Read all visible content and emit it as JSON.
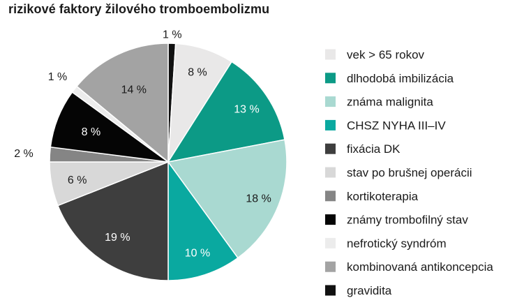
{
  "chart_data": {
    "type": "pie",
    "title": "rizikové faktory žilového tromboembolizmu",
    "slices": [
      {
        "label": "gravidita",
        "value": 1,
        "value_label": "1 %",
        "color": "#111111",
        "label_color": "#1a1a1a"
      },
      {
        "label": "vek > 65 rokov",
        "value": 8,
        "value_label": "8 %",
        "color": "#e9e8e8",
        "label_color": "#1a1a1a"
      },
      {
        "label": "dlhodobá imbilizácia",
        "value": 13,
        "value_label": "13 %",
        "color": "#0c9a86",
        "label_color": "#ffffff"
      },
      {
        "label": "známa malignita",
        "value": 18,
        "value_label": "18 %",
        "color": "#a9d9d1",
        "label_color": "#1a1a1a"
      },
      {
        "label": "CHSZ NYHA III–IV",
        "value": 10,
        "value_label": "10 %",
        "color": "#0aa9a0",
        "label_color": "#ffffff"
      },
      {
        "label": "fixácia DK",
        "value": 19,
        "value_label": "19 %",
        "color": "#3e3e3e",
        "label_color": "#ffffff"
      },
      {
        "label": "stav po brušnej operácii",
        "value": 6,
        "value_label": "6 %",
        "color": "#d8d8d8",
        "label_color": "#1a1a1a"
      },
      {
        "label": "kortikoterapia",
        "value": 2,
        "value_label": "2 %",
        "color": "#858585",
        "label_color": "#1a1a1a"
      },
      {
        "label": "známy trombofilný stav",
        "value": 8,
        "value_label": "8 %",
        "color": "#050505",
        "label_color": "#ffffff"
      },
      {
        "label": "nefrotický syndróm",
        "value": 1,
        "value_label": "1 %",
        "color": "#ececec",
        "label_color": "#1a1a1a"
      },
      {
        "label": "kombinovaná antikoncepcia",
        "value": 14,
        "value_label": "14 %",
        "color": "#a3a3a3",
        "label_color": "#1a1a1a"
      }
    ],
    "legend": {
      "placement": "right",
      "order": [
        "vek > 65 rokov",
        "dlhodobá imbilizácia",
        "známa malignita",
        "CHSZ NYHA III–IV",
        "fixácia DK",
        "stav po brušnej operácii",
        "kortikoterapia",
        "známy trombofilný stav",
        "nefrotický syndróm",
        "kombinovaná antikoncepcia",
        "gravidita"
      ]
    }
  }
}
